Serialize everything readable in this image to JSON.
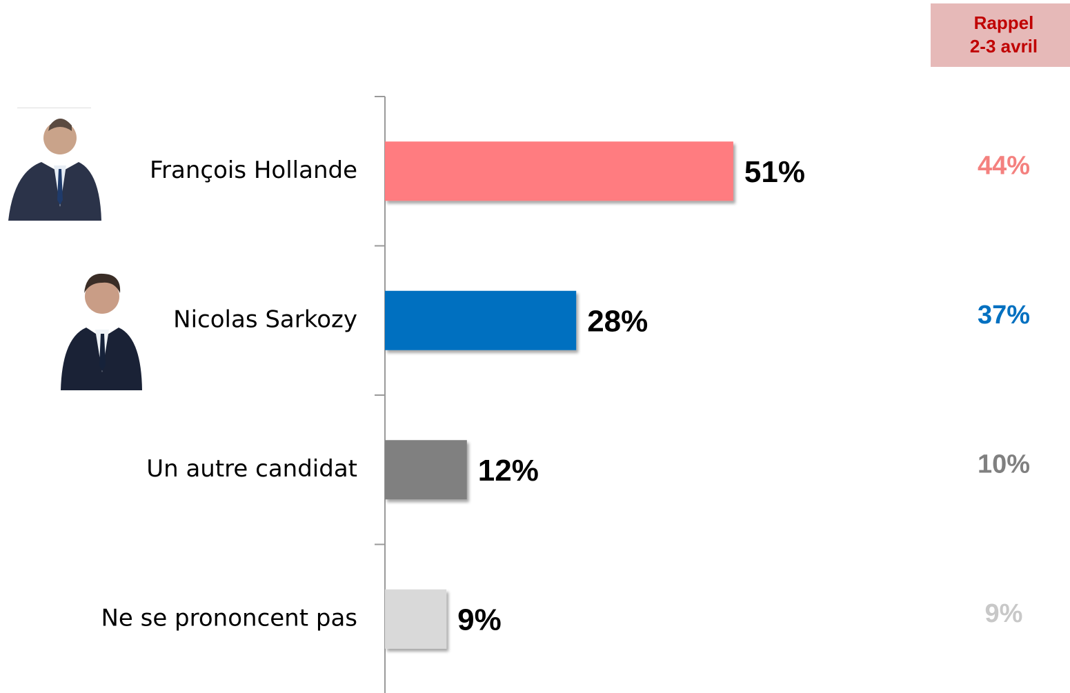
{
  "chart_data": {
    "type": "bar",
    "orientation": "horizontal",
    "categories": [
      "François Hollande",
      "Nicolas Sarkozy",
      "Un autre candidat",
      "Ne se prononcent pas"
    ],
    "values": [
      51,
      28,
      12,
      9
    ],
    "value_labels": [
      "51%",
      "28%",
      "12%",
      "9%"
    ],
    "colors": [
      "#ff7c80",
      "#0070c0",
      "#808080",
      "#d9d9d9"
    ],
    "recall": {
      "title": [
        "Rappel",
        "2-3 avril"
      ],
      "values": [
        44,
        37,
        10,
        9
      ],
      "value_labels": [
        "44%",
        "37%",
        "10%",
        "9%"
      ],
      "colors": [
        "#f4817f",
        "#0070c0",
        "#808080",
        "#c8c8c8"
      ]
    }
  }
}
